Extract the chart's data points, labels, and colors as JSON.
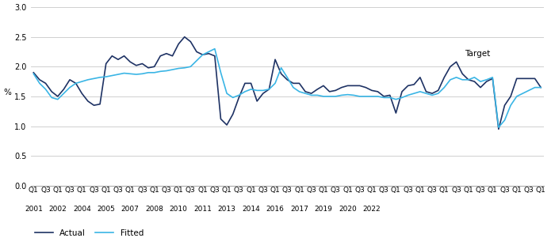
{
  "ylabel": "%",
  "ylim": [
    0.0,
    3.0
  ],
  "yticks": [
    0.0,
    0.5,
    1.0,
    1.5,
    2.0,
    2.5,
    3.0
  ],
  "target_label": "Target",
  "actual_color": "#1e3264",
  "fitted_color": "#3ab5e5",
  "background_color": "#ffffff",
  "grid_color": "#c8c8c8",
  "actual_label": "Actual",
  "fitted_label": "Fitted",
  "actual": [
    1.9,
    1.78,
    1.72,
    1.58,
    1.5,
    1.62,
    1.78,
    1.72,
    1.55,
    1.42,
    1.35,
    1.37,
    2.05,
    2.18,
    2.12,
    2.18,
    2.08,
    2.02,
    2.05,
    1.98,
    2.0,
    2.18,
    2.22,
    2.18,
    2.38,
    2.5,
    2.42,
    2.25,
    2.2,
    2.22,
    2.18,
    1.12,
    1.02,
    1.2,
    1.48,
    1.72,
    1.72,
    1.42,
    1.55,
    1.62,
    2.12,
    1.88,
    1.78,
    1.72,
    1.72,
    1.58,
    1.55,
    1.62,
    1.68,
    1.58,
    1.6,
    1.65,
    1.68,
    1.68,
    1.68,
    1.65,
    1.6,
    1.58,
    1.5,
    1.52,
    1.22,
    1.58,
    1.68,
    1.7,
    1.82,
    1.58,
    1.55,
    1.6,
    1.82,
    2.0,
    2.08,
    1.88,
    1.78,
    1.75,
    1.65,
    1.75,
    1.8,
    0.95,
    1.35,
    1.5,
    1.8,
    1.8,
    1.8,
    1.8,
    1.65
  ],
  "fitted": [
    1.88,
    1.72,
    1.62,
    1.48,
    1.45,
    1.55,
    1.65,
    1.72,
    1.75,
    1.78,
    1.8,
    1.82,
    1.83,
    1.85,
    1.87,
    1.89,
    1.88,
    1.87,
    1.88,
    1.9,
    1.9,
    1.92,
    1.93,
    1.95,
    1.97,
    1.98,
    2.0,
    2.1,
    2.2,
    2.25,
    2.3,
    1.9,
    1.55,
    1.48,
    1.52,
    1.58,
    1.62,
    1.6,
    1.6,
    1.62,
    1.72,
    1.98,
    1.82,
    1.65,
    1.58,
    1.55,
    1.52,
    1.52,
    1.5,
    1.5,
    1.5,
    1.52,
    1.53,
    1.52,
    1.5,
    1.5,
    1.5,
    1.5,
    1.48,
    1.48,
    1.45,
    1.48,
    1.52,
    1.55,
    1.58,
    1.55,
    1.52,
    1.55,
    1.65,
    1.78,
    1.82,
    1.78,
    1.78,
    1.82,
    1.75,
    1.78,
    1.82,
    0.98,
    1.1,
    1.35,
    1.5,
    1.55,
    1.6,
    1.65,
    1.65
  ],
  "xtick_positions": [
    0,
    2,
    4,
    6,
    8,
    10,
    12,
    14,
    16,
    18,
    20,
    22,
    24,
    26,
    28,
    30,
    32,
    34,
    36,
    38,
    40,
    42,
    44,
    46,
    48,
    50,
    52,
    54,
    56,
    58,
    60,
    62,
    64,
    66,
    68,
    70,
    72,
    74,
    76,
    78,
    80,
    82,
    84
  ],
  "xtick_q_labels": [
    "Q1",
    "Q3",
    "Q1",
    "Q3",
    "Q1",
    "Q3",
    "Q1",
    "Q3",
    "Q1",
    "Q3",
    "Q1",
    "Q3",
    "Q1",
    "Q3",
    "Q1",
    "Q3",
    "Q1",
    "Q3",
    "Q1",
    "Q3",
    "Q1",
    "Q3",
    "Q1",
    "Q3",
    "Q1",
    "Q3",
    "Q1",
    "Q3",
    "Q1",
    "Q3",
    "Q1",
    "Q3",
    "Q1",
    "Q3",
    "Q1",
    "Q3",
    "Q1",
    "Q3",
    "Q1",
    "Q3",
    "Q1",
    "Q3",
    "Q1"
  ],
  "year_tick_positions": [
    0,
    4,
    8,
    12,
    16,
    20,
    24,
    28,
    32,
    36,
    40,
    44,
    48,
    52,
    56
  ],
  "year_tick_labels": [
    "2001",
    "2002",
    "2004",
    "2005",
    "2007",
    "2008",
    "2010",
    "2011",
    "2013",
    "2014",
    "2016",
    "2017",
    "2019",
    "2020",
    "2022"
  ]
}
